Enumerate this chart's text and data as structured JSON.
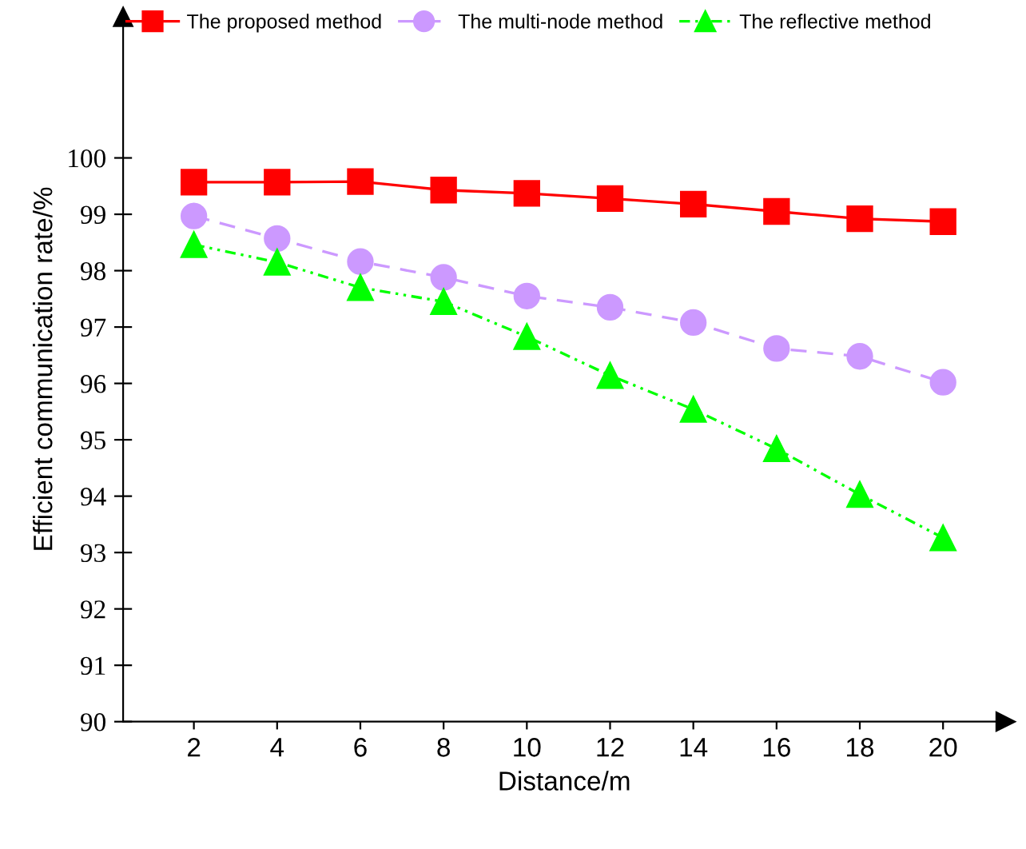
{
  "chart_data": {
    "type": "line",
    "xlabel": "Distance/m",
    "ylabel": "Efficient communication rate/%",
    "x": [
      2,
      4,
      6,
      8,
      10,
      12,
      14,
      16,
      18,
      20
    ],
    "series": [
      {
        "name": "The proposed method",
        "color": "#ff0000",
        "marker": "square",
        "line_style": "solid",
        "values": [
          99.57,
          99.57,
          99.58,
          99.43,
          99.37,
          99.28,
          99.18,
          99.05,
          98.92,
          98.87
        ]
      },
      {
        "name": "The multi-node method",
        "color": "#cc99ff",
        "marker": "circle",
        "line_style": "dashed",
        "values": [
          98.97,
          98.57,
          98.16,
          97.88,
          97.55,
          97.35,
          97.08,
          96.62,
          96.48,
          96.02
        ]
      },
      {
        "name": "The reflective method",
        "color": "#00ff00",
        "marker": "triangle",
        "line_style": "dotted",
        "values": [
          98.46,
          98.15,
          97.7,
          97.45,
          96.83,
          96.14,
          95.54,
          94.84,
          94.03,
          93.26
        ]
      }
    ],
    "xlim": [
      0.3,
      21.5
    ],
    "ylim": [
      90,
      102.5
    ],
    "xticks": [
      2,
      4,
      6,
      8,
      10,
      12,
      14,
      16,
      18,
      20
    ],
    "yticks": [
      90,
      91,
      92,
      93,
      94,
      95,
      96,
      97,
      98,
      99,
      100
    ],
    "grid": false,
    "legend": "top"
  }
}
